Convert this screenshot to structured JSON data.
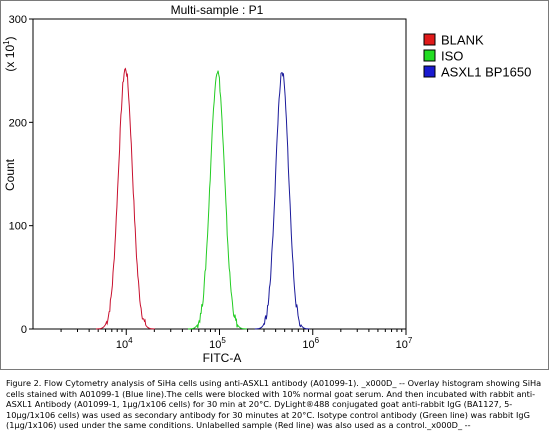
{
  "chart_data": {
    "type": "line",
    "title": "Multi-sample : P1",
    "xlabel": "FITC-A",
    "ylabel": "Count",
    "y_multiplier_label": "(x 10",
    "y_multiplier_exp": "1",
    "x_scale": "log",
    "xlim": [
      1000,
      10000000
    ],
    "ylim": [
      0,
      300
    ],
    "x_ticks": [
      {
        "base": "10",
        "exp": "4",
        "value": 10000
      },
      {
        "base": "10",
        "exp": "5",
        "value": 100000
      },
      {
        "base": "10",
        "exp": "6",
        "value": 1000000
      },
      {
        "base": "10",
        "exp": "7",
        "value": 10000000
      }
    ],
    "y_ticks": [
      {
        "label": "0",
        "value": 0
      },
      {
        "label": "100",
        "value": 100
      },
      {
        "label": "200",
        "value": 200
      },
      {
        "label": "300",
        "value": 300
      }
    ],
    "legend_position": "right",
    "series": [
      {
        "name": "BLANK",
        "color": "#c8102e",
        "fill": "#e01a1a",
        "peak_x": 9800,
        "peak_y": 252,
        "log_sigma": 0.075
      },
      {
        "name": "ISO",
        "color": "#22cc22",
        "fill": "#22dd22",
        "peak_x": 95000,
        "peak_y": 250,
        "log_sigma": 0.075
      },
      {
        "name": "ASXL1 BP1650",
        "color": "#1a1a9a",
        "fill": "#1a1ad0",
        "peak_x": 470000,
        "peak_y": 248,
        "log_sigma": 0.07
      }
    ]
  },
  "caption": "Figure 2. Flow Cytometry analysis of SiHa cells using anti-ASXL1 antibody (A01099-1). _x000D_ -- Overlay histogram showing SiHa cells stained with A01099-1 (Blue line).The cells were blocked with 10% normal goat serum. And then incubated with rabbit anti-ASXL1 Antibody (A01099-1, 1µg/1x106 cells) for 30 min at 20°C. DyLight®488 conjugated goat anti-rabbit IgG (BA1127, 5-10µg/1x106 cells) was used as secondary antibody for 30 minutes at 20°C. Isotype control antibody (Green line) was rabbit IgG (1µg/1x106) used under the same conditions. Unlabelled sample (Red line) was also used as a control._x000D_ --"
}
